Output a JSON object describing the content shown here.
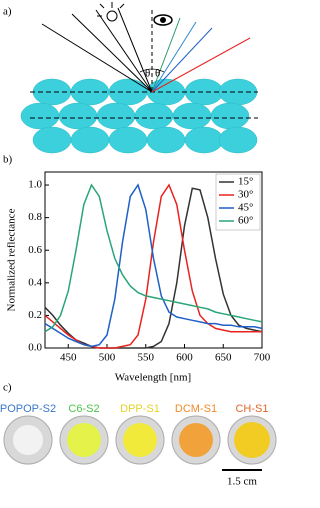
{
  "panel_labels": [
    "a)",
    "b)",
    "c)"
  ],
  "diagram": {
    "angle_labels": [
      "θ",
      "θ"
    ]
  },
  "chart_data": {
    "type": "line",
    "xlabel": "Wavelength [nm]",
    "ylabel": "Normalized reflectance",
    "x": [
      420,
      430,
      440,
      450,
      460,
      470,
      480,
      490,
      500,
      510,
      520,
      530,
      540,
      550,
      560,
      570,
      580,
      590,
      600,
      610,
      620,
      630,
      640,
      650,
      660,
      670,
      680,
      690,
      700
    ],
    "series": [
      {
        "name": "15°",
        "color": "#333333",
        "values": [
          0.25,
          0.2,
          0.14,
          0.09,
          0.05,
          0.03,
          0.01,
          0.0,
          0.0,
          0.0,
          0.0,
          0.0,
          0.0,
          0.0,
          0.01,
          0.04,
          0.15,
          0.4,
          0.75,
          0.98,
          0.97,
          0.8,
          0.55,
          0.33,
          0.2,
          0.14,
          0.12,
          0.11,
          0.1
        ]
      },
      {
        "name": "30°",
        "color": "#e8231f",
        "values": [
          0.2,
          0.16,
          0.12,
          0.08,
          0.05,
          0.02,
          0.01,
          0.0,
          0.0,
          0.0,
          0.01,
          0.02,
          0.08,
          0.3,
          0.65,
          0.93,
          1.0,
          0.88,
          0.6,
          0.35,
          0.2,
          0.15,
          0.12,
          0.11,
          0.1,
          0.1,
          0.1,
          0.1,
          0.1
        ]
      },
      {
        "name": "45°",
        "color": "#1f5fc8",
        "values": [
          0.15,
          0.12,
          0.09,
          0.06,
          0.04,
          0.02,
          0.01,
          0.02,
          0.08,
          0.3,
          0.65,
          0.93,
          1.0,
          0.85,
          0.55,
          0.32,
          0.22,
          0.19,
          0.18,
          0.17,
          0.16,
          0.15,
          0.15,
          0.14,
          0.14,
          0.13,
          0.13,
          0.13,
          0.12
        ]
      },
      {
        "name": "60°",
        "color": "#2aa676",
        "values": [
          0.1,
          0.13,
          0.2,
          0.35,
          0.6,
          0.88,
          1.0,
          0.93,
          0.72,
          0.55,
          0.45,
          0.38,
          0.34,
          0.32,
          0.31,
          0.3,
          0.29,
          0.28,
          0.27,
          0.26,
          0.25,
          0.24,
          0.22,
          0.21,
          0.2,
          0.19,
          0.18,
          0.17,
          0.16
        ]
      }
    ],
    "xlim": [
      420,
      700
    ],
    "xticks": [
      450,
      500,
      550,
      600,
      650,
      700
    ],
    "ylim": [
      0,
      1.08
    ],
    "yticks": [
      {
        "value": 0,
        "label": "0.0"
      },
      0.2,
      0.4,
      0.6,
      0.8,
      {
        "value": 1,
        "label": "1.0"
      }
    ],
    "legend": "upper right"
  },
  "samples": {
    "labels": [
      {
        "text": "POPOP-S2",
        "color": "#3a78c8"
      },
      {
        "text": "C6-S2",
        "color": "#4cc34c"
      },
      {
        "text": "DPP-S1",
        "color": "#e6d22a"
      },
      {
        "text": "DCM-S1",
        "color": "#f08a2a"
      },
      {
        "text": "CH-S1",
        "color": "#e0642a"
      }
    ],
    "scale_bar": "1.5 cm"
  }
}
